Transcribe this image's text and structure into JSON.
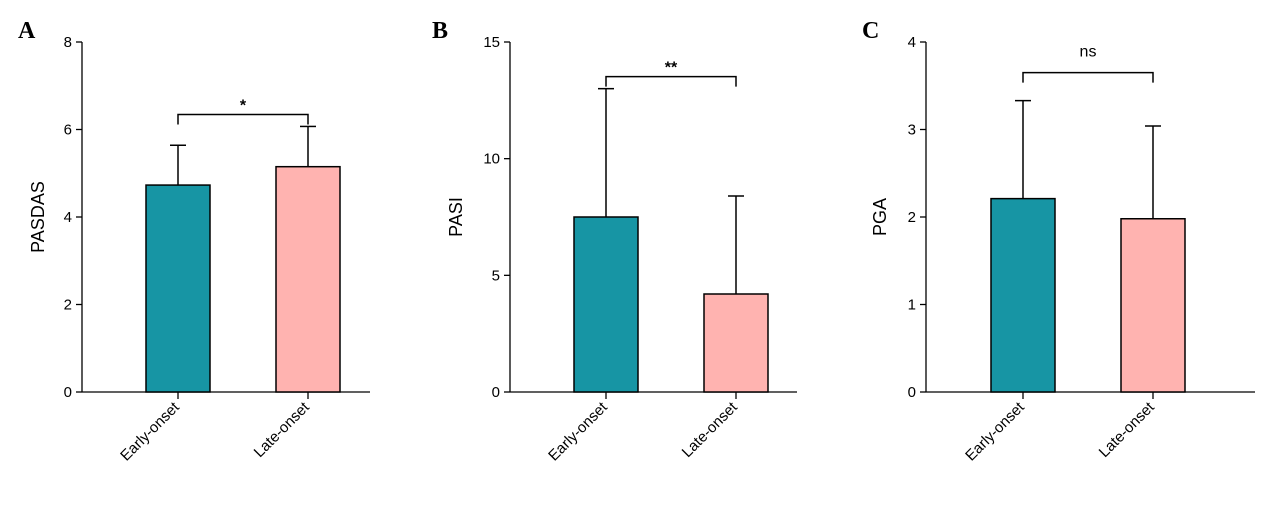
{
  "figure": {
    "colors": {
      "early": "#1795A4",
      "late": "#FFB3B0"
    },
    "panels": [
      {
        "letter": "A",
        "significance": "*"
      },
      {
        "letter": "B",
        "significance": "**"
      },
      {
        "letter": "C",
        "significance": "ns"
      }
    ]
  },
  "chart_data": [
    {
      "type": "bar",
      "panel": "A",
      "categories": [
        "Early-onset",
        "Late-onset"
      ],
      "values": [
        4.73,
        5.15
      ],
      "error_upper": [
        5.64,
        6.07
      ],
      "ylabel": "PASDAS",
      "ylim": [
        0,
        8
      ],
      "yticks": [
        0,
        2,
        4,
        6,
        8
      ],
      "annotation": "*"
    },
    {
      "type": "bar",
      "panel": "B",
      "categories": [
        "Early-onset",
        "Late-onset"
      ],
      "values": [
        7.5,
        4.2
      ],
      "error_upper": [
        13.0,
        8.4
      ],
      "ylabel": "PASI",
      "ylim": [
        0,
        15
      ],
      "yticks": [
        0,
        5,
        10,
        15
      ],
      "annotation": "**"
    },
    {
      "type": "bar",
      "panel": "C",
      "categories": [
        "Early-onset",
        "Late-onset"
      ],
      "values": [
        2.21,
        1.98
      ],
      "error_upper": [
        3.33,
        3.04
      ],
      "ylabel": "PGA",
      "ylim": [
        0,
        4
      ],
      "yticks": [
        0,
        1,
        2,
        3,
        4
      ],
      "annotation": "ns"
    }
  ]
}
